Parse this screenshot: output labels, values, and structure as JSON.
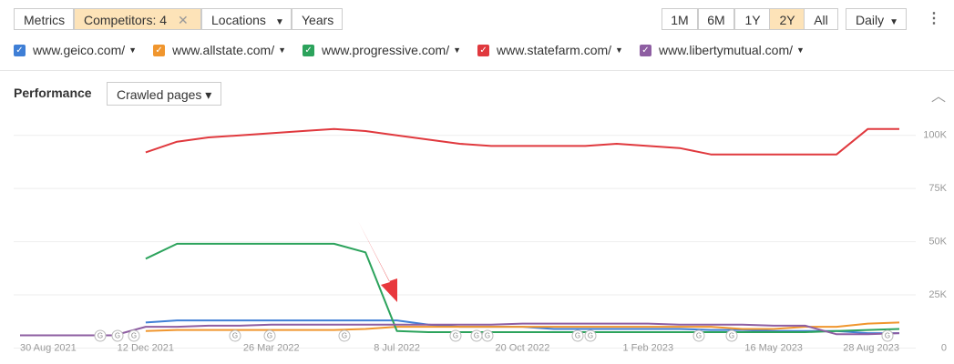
{
  "toolbar": {
    "left": [
      "Metrics",
      "Competitors: 4",
      "Locations",
      "Years"
    ],
    "ranges": [
      "1M",
      "6M",
      "1Y",
      "2Y",
      "All"
    ],
    "interval": "Daily"
  },
  "panel": {
    "title": "Performance",
    "dropdown": "Crawled pages"
  },
  "event_marker": "G",
  "chart_data": {
    "type": "line",
    "categories": [
      "30 Aug 2021",
      null,
      null,
      null,
      "12 Dec 2021",
      null,
      null,
      null,
      "26 Mar 2022",
      null,
      null,
      null,
      "8 Jul 2022",
      null,
      null,
      null,
      "20 Oct 2022",
      null,
      null,
      null,
      "1 Feb 2023",
      null,
      null,
      null,
      "16 May 2023",
      null,
      null,
      null,
      "28 Aug 2023"
    ],
    "ylim": [
      0,
      105000
    ],
    "yticks": [
      {
        "value": 0,
        "label": "0"
      },
      {
        "value": 25000,
        "label": "25K"
      },
      {
        "value": 50000,
        "label": "50K"
      },
      {
        "value": 75000,
        "label": "75K"
      },
      {
        "value": 100000,
        "label": "100K"
      }
    ],
    "grid": true,
    "series": [
      {
        "name": "www.geico.com/",
        "color": "#3f7fd6",
        "values": [
          null,
          null,
          null,
          null,
          12000,
          13000,
          13000,
          13000,
          13000,
          13000,
          13000,
          13000,
          13000,
          11000,
          10000,
          10000,
          10000,
          9000,
          9000,
          9000,
          9000,
          9000,
          8500,
          8500,
          8000,
          8000,
          8000,
          7000,
          7000
        ]
      },
      {
        "name": "www.allstate.com/",
        "color": "#f0962e",
        "values": [
          null,
          null,
          null,
          null,
          8000,
          8500,
          8500,
          8500,
          8500,
          8500,
          8500,
          9000,
          10000,
          10000,
          10000,
          10000,
          10000,
          10000,
          10000,
          10000,
          10000,
          10000,
          10000,
          9000,
          9000,
          10000,
          10000,
          11500,
          12000
        ]
      },
      {
        "name": "www.progressive.com/",
        "color": "#2ca35c",
        "values": [
          null,
          null,
          null,
          null,
          42000,
          49000,
          49000,
          49000,
          49000,
          49000,
          49000,
          45000,
          8000,
          7500,
          7500,
          7500,
          7500,
          7500,
          7500,
          7500,
          7500,
          7500,
          7500,
          7500,
          7500,
          7500,
          8000,
          8500,
          9000
        ]
      },
      {
        "name": "www.statefarm.com/",
        "color": "#e0393e",
        "values": [
          null,
          null,
          null,
          null,
          92000,
          97000,
          99000,
          100000,
          101000,
          102000,
          103000,
          102000,
          100000,
          98000,
          96000,
          95000,
          95000,
          95000,
          95000,
          96000,
          95000,
          94000,
          91000,
          91000,
          91000,
          91000,
          91000,
          103000,
          103000
        ]
      },
      {
        "name": "www.libertymutual.com/",
        "color": "#8e5ea2",
        "values": [
          6000,
          6000,
          6000,
          6000,
          10000,
          10000,
          10500,
          10500,
          11000,
          11000,
          11000,
          11000,
          11000,
          11000,
          11000,
          11000,
          11500,
          11500,
          11500,
          11500,
          11500,
          11000,
          11000,
          11000,
          10500,
          10500,
          6500,
          6500,
          7000
        ]
      }
    ]
  }
}
